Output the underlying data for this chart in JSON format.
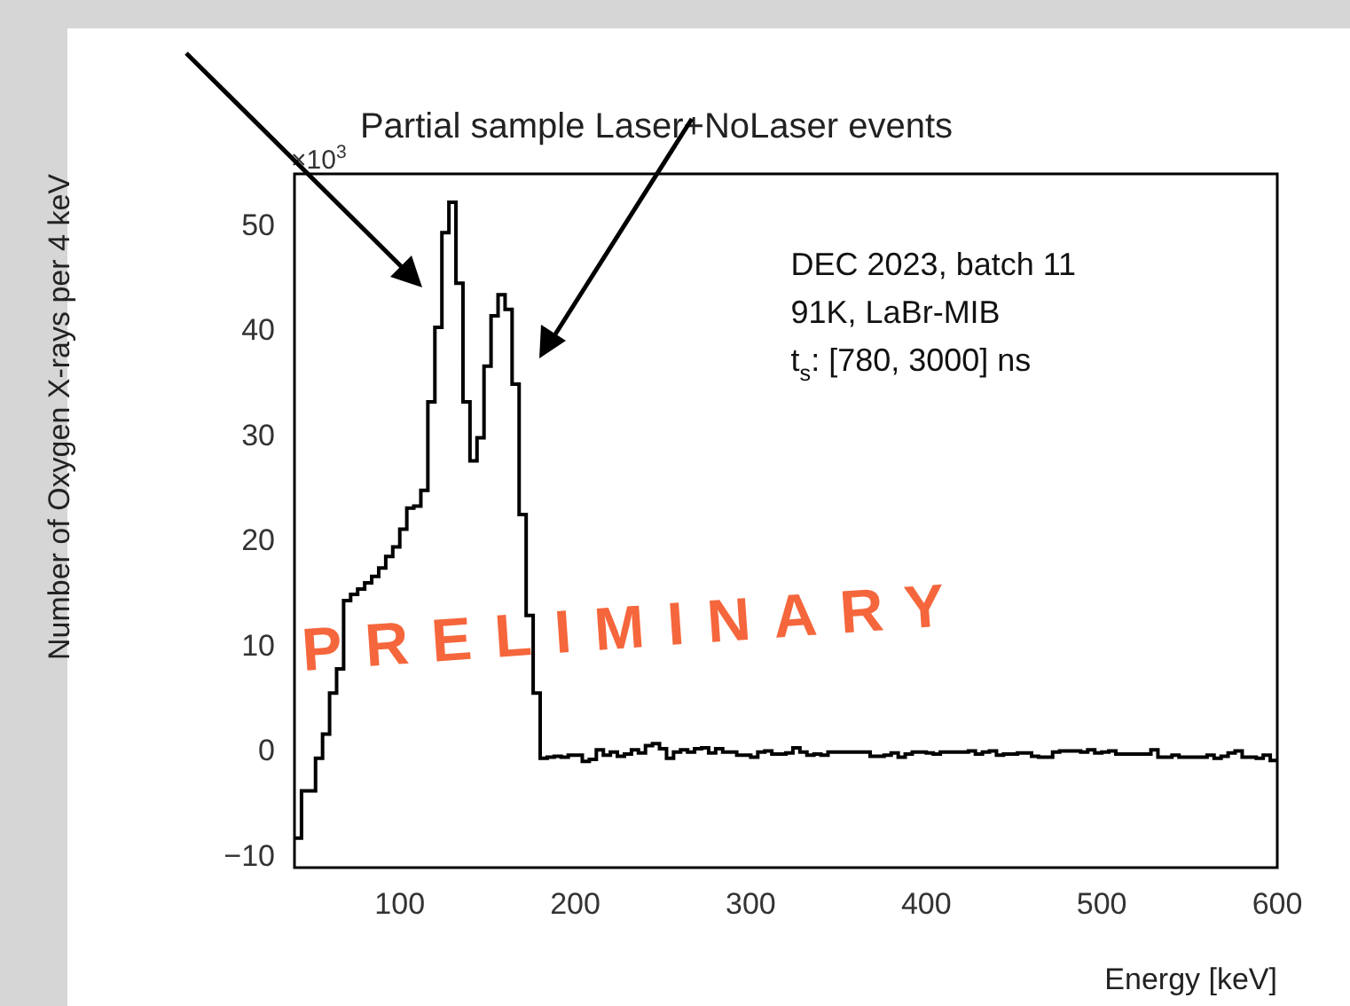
{
  "chart_data": {
    "type": "histogram",
    "title": "Partial sample Laser+NoLaser events",
    "xlabel": "Energy [keV]",
    "ylabel": "Number of Oxygen X-rays per 4 keV",
    "annotations": [
      "×10$^{3}$",
      "DEC 2023, batch 11",
      "91K, LaBr-MIB",
      "t$_{s}$: [780, 3000] ns",
      "PRELIMINARY"
    ],
    "color": "#000000",
    "bins": [
      40,
      44,
      48,
      52,
      56,
      60,
      64,
      68,
      72,
      76,
      80,
      84,
      88,
      92,
      96,
      100,
      104,
      108,
      112,
      116,
      120,
      124,
      128,
      132,
      136,
      140,
      144,
      148,
      152,
      156,
      160,
      164,
      168,
      172,
      176,
      180,
      184,
      188,
      192,
      196,
      200,
      204,
      208,
      212,
      216,
      220,
      224,
      228,
      232,
      236,
      240,
      244,
      248,
      252,
      256,
      260,
      264,
      268,
      272,
      276,
      280,
      284,
      288,
      292,
      296,
      300,
      304,
      308,
      312,
      316,
      320,
      324,
      328,
      332,
      336,
      340,
      344,
      348,
      352,
      356,
      360,
      364,
      368,
      372,
      376,
      380,
      384,
      388,
      392,
      396,
      400,
      404,
      408,
      412,
      416,
      420,
      424,
      428,
      432,
      436,
      440,
      444,
      448,
      452,
      456,
      460,
      464,
      468,
      472,
      476,
      480,
      484,
      488,
      492,
      496,
      500,
      504,
      508,
      512,
      516,
      520,
      524,
      528,
      532,
      536,
      540,
      544,
      548,
      552,
      556,
      560,
      564,
      568,
      572,
      576,
      580,
      584,
      588,
      592,
      596,
      600
    ],
    "values": [
      -8.2,
      -3.7,
      -3.7,
      -0.6,
      1.7,
      5.6,
      7.9,
      14.4,
      15,
      15.5,
      16.1,
      16.7,
      17.5,
      18.6,
      19.5,
      21.2,
      23.2,
      23.4,
      24.9,
      33.3,
      40.4,
      49.4,
      52.3,
      44.6,
      33.3,
      27.7,
      29.9,
      36.7,
      41.5,
      43.5,
      42.1,
      35,
      22.6,
      13,
      5.6,
      -0.6,
      -0.5,
      -0.4,
      -0.5,
      -0.3,
      -0.3,
      -0.9,
      -0.7,
      0.2,
      -0.3,
      0,
      -0.4,
      -0.2,
      0.2,
      -0.1,
      0.6,
      0.8,
      0.3,
      -0.6,
      0,
      0.2,
      0,
      0.3,
      0.4,
      -0.1,
      0.3,
      0,
      0,
      -0.3,
      -0.3,
      -0.5,
      0,
      0.1,
      -0.2,
      -0.2,
      -0.1,
      0.4,
      0,
      -0.3,
      -0.2,
      -0.3,
      0,
      0,
      0,
      0,
      0,
      0,
      -0.4,
      -0.4,
      -0.3,
      -0.1,
      -0.5,
      -0.2,
      0,
      0,
      -0.1,
      -0.2,
      0,
      0,
      0,
      0,
      0.1,
      -0.2,
      0,
      0.1,
      -0.3,
      -0.2,
      -0.2,
      -0.1,
      -0.1,
      -0.4,
      -0.5,
      -0.5,
      0,
      0.1,
      0.1,
      0.1,
      0,
      0.2,
      -0.1,
      0,
      0.1,
      -0.2,
      -0.2,
      -0.2,
      -0.2,
      -0.2,
      0.2,
      -0.5,
      -0.5,
      -0.3,
      -0.5,
      -0.5,
      -0.5,
      -0.5,
      -0.3,
      -0.6,
      -0.4,
      -0.1,
      0.1,
      -0.5,
      -0.5,
      -0.6,
      -0.3,
      -0.8
    ],
    "xlim": [
      40,
      600
    ],
    "xticks": [
      100,
      200,
      300,
      400,
      500,
      600
    ],
    "ylim": [
      -11,
      55
    ],
    "yticks": [
      -10,
      0,
      10,
      20,
      30,
      40,
      50
    ],
    "grid": false,
    "legend": false
  }
}
